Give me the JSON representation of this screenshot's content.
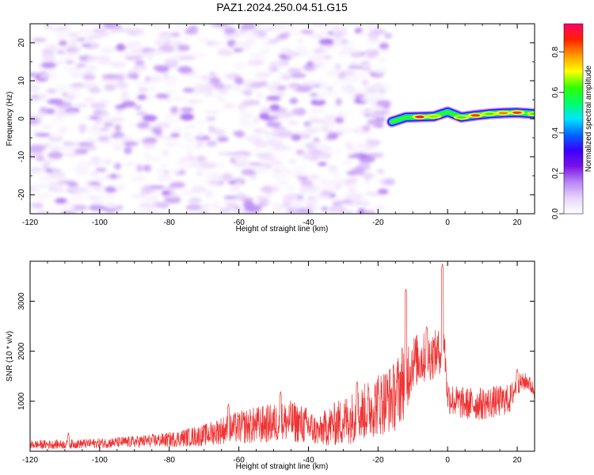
{
  "figure": {
    "title": "PAZ1.2024.250.04.51.G15"
  },
  "chart_data": [
    {
      "type": "heatmap",
      "title": "PAZ1.2024.250.04.51.G15",
      "xlabel": "Height of straight line (km)",
      "ylabel": "Frequency (Hz)",
      "xlim": [
        -120,
        25
      ],
      "ylim": [
        -25,
        25
      ],
      "x_ticks": [
        -120,
        -100,
        -80,
        -60,
        -40,
        -20,
        0,
        20
      ],
      "y_ticks": [
        -20,
        -10,
        0,
        10,
        20
      ],
      "colorbar": {
        "label": "Normalized spectral amplitude",
        "range": [
          0,
          0.94
        ],
        "ticks": [
          "0.0",
          "0.2",
          "0.4",
          "0.6",
          "0.8"
        ],
        "colormap": [
          "#ffffff",
          "#e9d4fb",
          "#b784f5",
          "#7a12e8",
          "#3a00ff",
          "#0066ff",
          "#00e5ff",
          "#00ff66",
          "#33ff00",
          "#ffff00",
          "#ff9900",
          "#ff2200",
          "#ff0066"
        ]
      },
      "noise_region_km": [
        -120,
        -17
      ],
      "signal_track": {
        "x": [
          -16,
          -12,
          -8,
          -4,
          0,
          4,
          8,
          12,
          16,
          20,
          25
        ],
        "freq_hz": [
          -0.8,
          0.4,
          0.5,
          0.6,
          1.8,
          0.4,
          0.9,
          1.3,
          1.5,
          1.6,
          1.3
        ],
        "amplitude": [
          0.35,
          0.55,
          0.9,
          0.65,
          0.5,
          0.6,
          0.85,
          0.6,
          0.8,
          0.85,
          0.6
        ]
      }
    },
    {
      "type": "line",
      "xlabel": "Height of straight line (km)",
      "ylabel": "SNR (10 * v/v)",
      "xlim": [
        -120,
        25
      ],
      "ylim": [
        0,
        3800
      ],
      "x_ticks": [
        -120,
        -100,
        -80,
        -60,
        -40,
        -20,
        0,
        20
      ],
      "y_ticks": [
        1000,
        2000,
        3000
      ],
      "color": "#ee3333",
      "envelope": {
        "x": [
          -120,
          -110,
          -100,
          -90,
          -80,
          -70,
          -65,
          -60,
          -55,
          -50,
          -45,
          -40,
          -37,
          -35,
          -30,
          -25,
          -20,
          -15,
          -13,
          -12,
          -10,
          -5,
          -2,
          -1,
          0,
          2,
          5,
          10,
          15,
          18,
          20,
          23,
          25
        ],
        "baseline": [
          130,
          140,
          160,
          190,
          230,
          320,
          420,
          480,
          520,
          560,
          600,
          500,
          380,
          480,
          600,
          750,
          950,
          1100,
          1400,
          1500,
          1800,
          1900,
          2000,
          2200,
          1100,
          1000,
          950,
          950,
          1000,
          1050,
          1350,
          1400,
          1200
        ],
        "spread": [
          90,
          90,
          100,
          120,
          150,
          220,
          280,
          330,
          380,
          400,
          420,
          380,
          280,
          380,
          500,
          550,
          650,
          700,
          800,
          800,
          550,
          500,
          450,
          400,
          350,
          330,
          330,
          330,
          320,
          300,
          200,
          180,
          150
        ]
      },
      "peaks": [
        {
          "x": -109,
          "y": 380
        },
        {
          "x": -63,
          "y": 950
        },
        {
          "x": -48,
          "y": 1200
        },
        {
          "x": -26,
          "y": 1400
        },
        {
          "x": -12,
          "y": 3250
        },
        {
          "x": -6,
          "y": 2500
        },
        {
          "x": -1.5,
          "y": 3750
        },
        {
          "x": 20,
          "y": 1650
        }
      ]
    }
  ]
}
